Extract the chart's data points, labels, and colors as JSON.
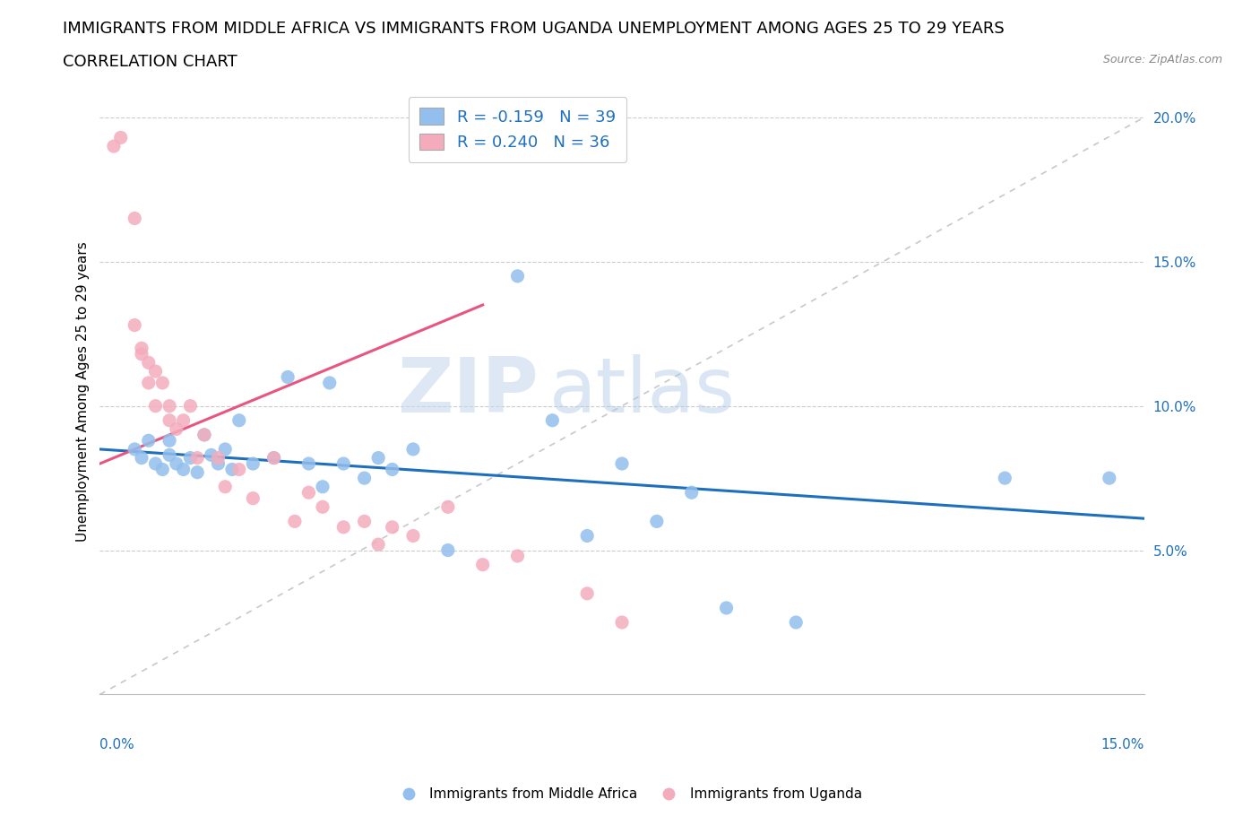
{
  "title_line1": "IMMIGRANTS FROM MIDDLE AFRICA VS IMMIGRANTS FROM UGANDA UNEMPLOYMENT AMONG AGES 25 TO 29 YEARS",
  "title_line2": "CORRELATION CHART",
  "source_text": "Source: ZipAtlas.com",
  "ylabel": "Unemployment Among Ages 25 to 29 years",
  "xlim": [
    0.0,
    0.15
  ],
  "ylim": [
    0.0,
    0.21
  ],
  "yticks": [
    0.05,
    0.1,
    0.15,
    0.2
  ],
  "xticks": [
    0.0,
    0.025,
    0.05,
    0.075,
    0.1,
    0.125,
    0.15
  ],
  "blue_R": -0.159,
  "blue_N": 39,
  "pink_R": 0.24,
  "pink_N": 36,
  "blue_color": "#92BFED",
  "pink_color": "#F4ACBC",
  "blue_line_color": "#1F6FBF",
  "pink_line_color": "#E85580",
  "diagonal_color": "#C8C8C8",
  "watermark_zip": "ZIP",
  "watermark_atlas": "atlas",
  "blue_points_x": [
    0.005,
    0.006,
    0.007,
    0.008,
    0.009,
    0.01,
    0.01,
    0.011,
    0.012,
    0.013,
    0.014,
    0.015,
    0.016,
    0.017,
    0.018,
    0.019,
    0.02,
    0.022,
    0.025,
    0.027,
    0.03,
    0.032,
    0.033,
    0.035,
    0.038,
    0.04,
    0.042,
    0.045,
    0.05,
    0.06,
    0.065,
    0.07,
    0.075,
    0.08,
    0.085,
    0.09,
    0.1,
    0.13,
    0.145
  ],
  "blue_points_y": [
    0.085,
    0.082,
    0.088,
    0.08,
    0.078,
    0.083,
    0.088,
    0.08,
    0.078,
    0.082,
    0.077,
    0.09,
    0.083,
    0.08,
    0.085,
    0.078,
    0.095,
    0.08,
    0.082,
    0.11,
    0.08,
    0.072,
    0.108,
    0.08,
    0.075,
    0.082,
    0.078,
    0.085,
    0.05,
    0.145,
    0.095,
    0.055,
    0.08,
    0.06,
    0.07,
    0.03,
    0.025,
    0.075,
    0.075
  ],
  "pink_points_x": [
    0.002,
    0.003,
    0.005,
    0.005,
    0.006,
    0.006,
    0.007,
    0.007,
    0.008,
    0.008,
    0.009,
    0.01,
    0.01,
    0.011,
    0.012,
    0.013,
    0.014,
    0.015,
    0.017,
    0.018,
    0.02,
    0.022,
    0.025,
    0.028,
    0.03,
    0.032,
    0.035,
    0.038,
    0.04,
    0.042,
    0.045,
    0.05,
    0.055,
    0.06,
    0.07,
    0.075
  ],
  "pink_points_y": [
    0.19,
    0.193,
    0.165,
    0.128,
    0.12,
    0.118,
    0.115,
    0.108,
    0.112,
    0.1,
    0.108,
    0.1,
    0.095,
    0.092,
    0.095,
    0.1,
    0.082,
    0.09,
    0.082,
    0.072,
    0.078,
    0.068,
    0.082,
    0.06,
    0.07,
    0.065,
    0.058,
    0.06,
    0.052,
    0.058,
    0.055,
    0.065,
    0.045,
    0.048,
    0.035,
    0.025
  ],
  "blue_line_x0": 0.0,
  "blue_line_y0": 0.085,
  "blue_line_x1": 0.15,
  "blue_line_y1": 0.061,
  "pink_line_x0": 0.0,
  "pink_line_y0": 0.08,
  "pink_line_x1": 0.05,
  "pink_line_x1_end": 0.055,
  "pink_line_y1": 0.135,
  "legend_label_blue": "Immigrants from Middle Africa",
  "legend_label_pink": "Immigrants from Uganda",
  "title_fontsize": 13,
  "subtitle_fontsize": 13,
  "axis_fontsize": 11,
  "tick_fontsize": 11
}
